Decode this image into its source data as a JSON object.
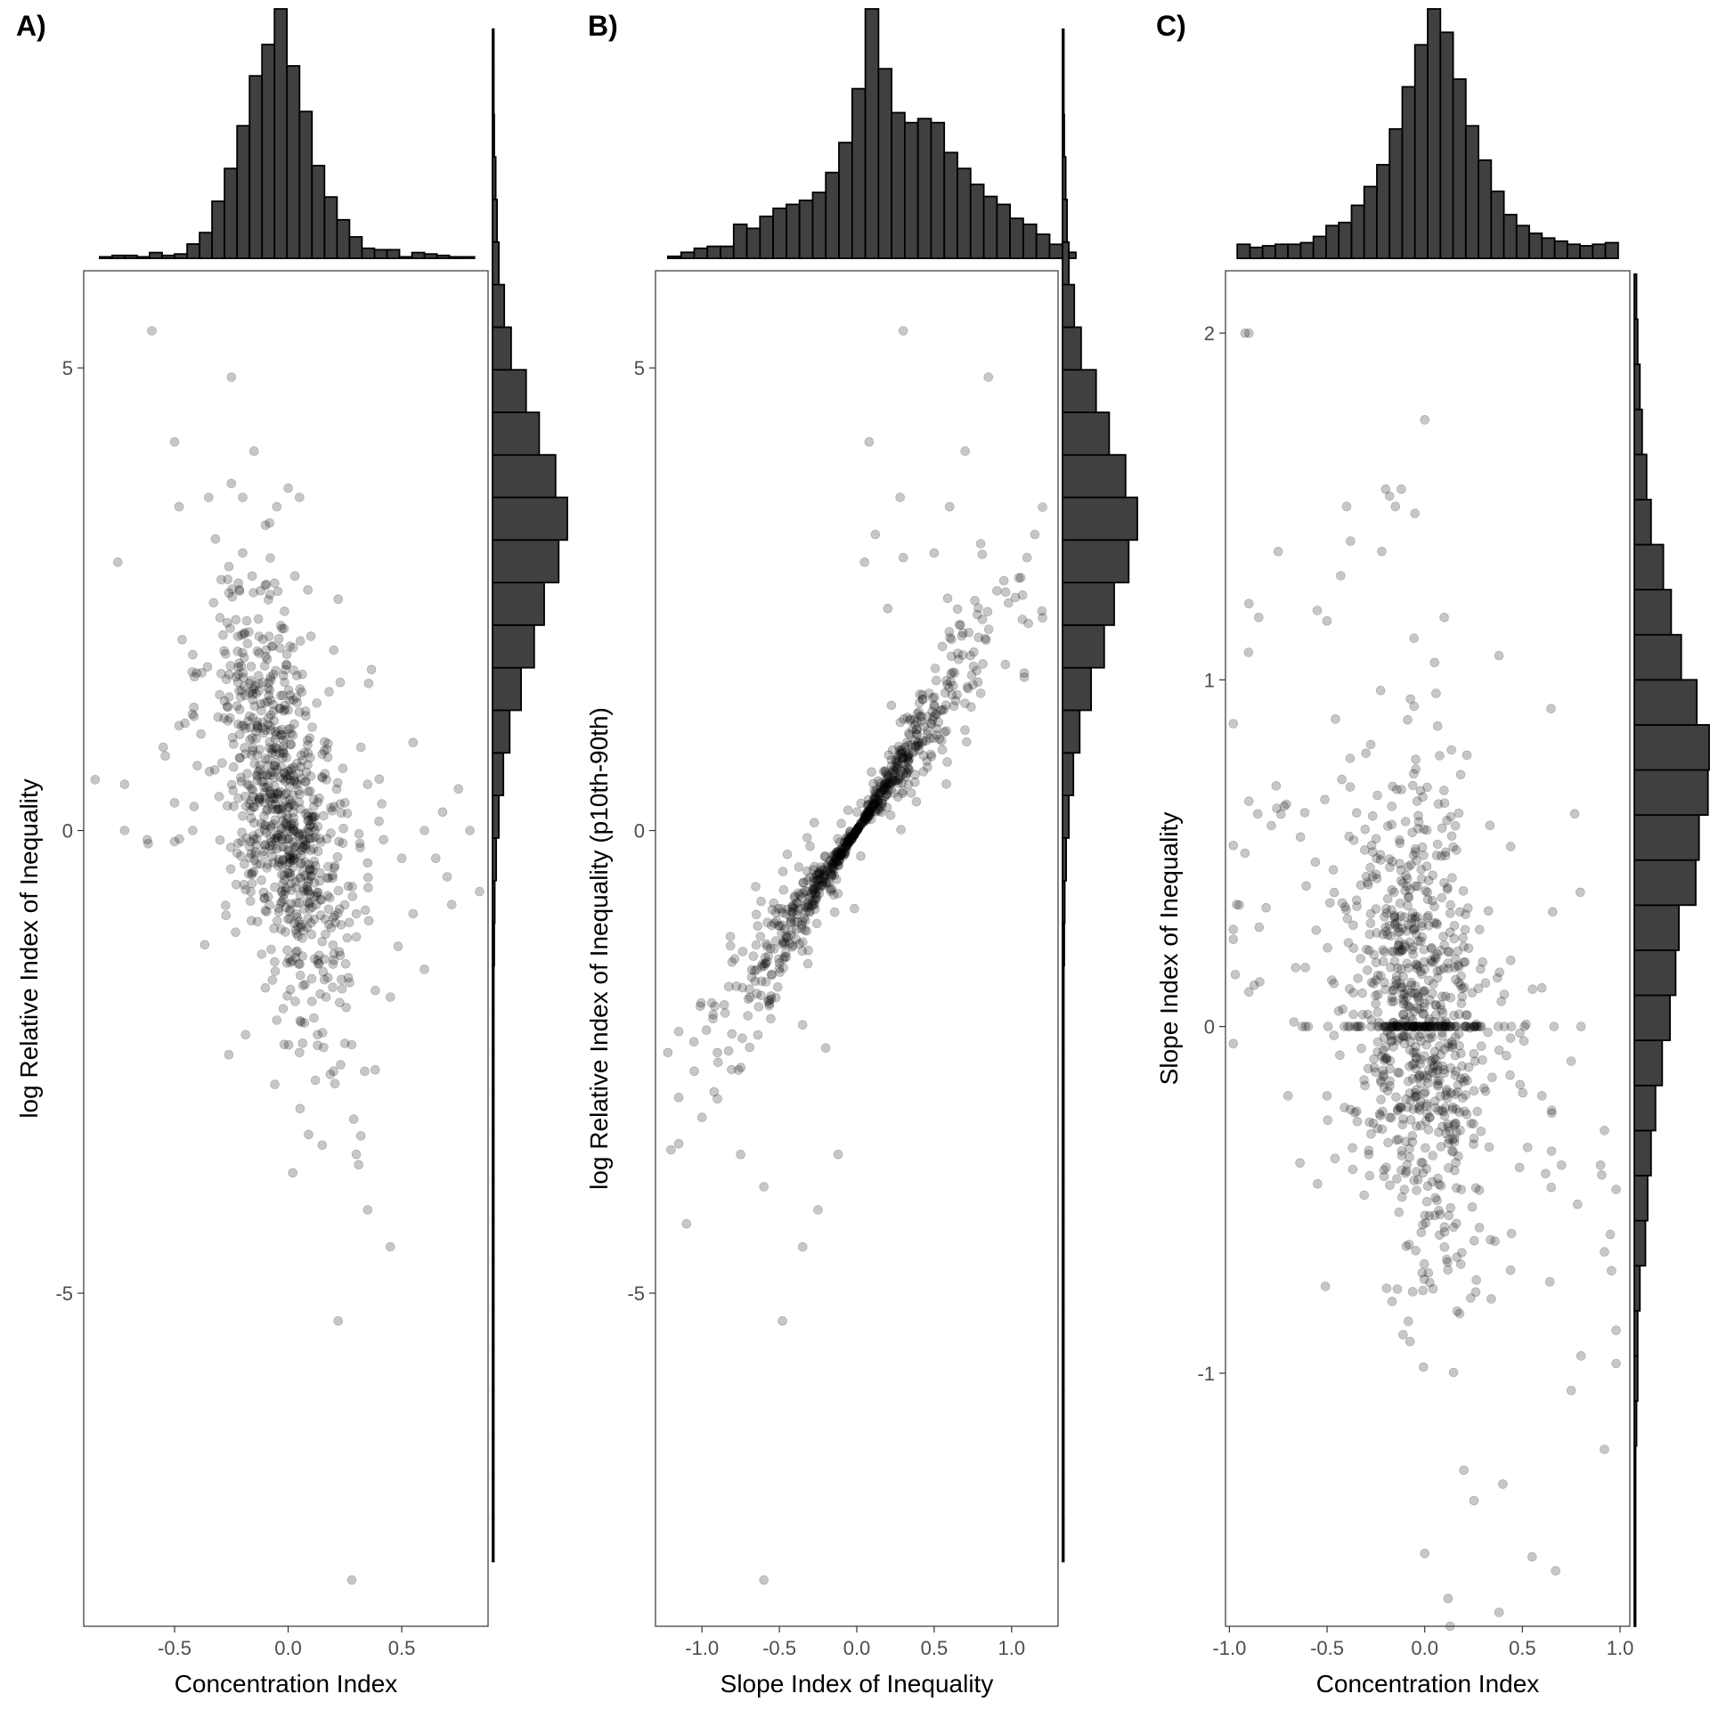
{
  "chart_data": [
    {
      "type": "scatter",
      "panel_label": "A)",
      "xlabel": "Concentration Index",
      "ylabel": "log Relative Index of Inequality",
      "xlim": [
        -0.9,
        0.88
      ],
      "ylim": [
        -8.6,
        6.05
      ],
      "xticks": [
        -0.5,
        0.0,
        0.5
      ],
      "xtick_labels": [
        "-0.5",
        "0.0",
        "0.5"
      ],
      "yticks": [
        5,
        0,
        -5
      ],
      "ytick_labels": [
        "5",
        "0",
        "-5"
      ],
      "marginal_histograms": true,
      "grid": false,
      "point_color": "#000000",
      "point_opacity": 0.22,
      "bar_color": "#404040",
      "x_hist": {
        "start": -0.83,
        "width": 0.055,
        "counts": [
          1,
          2,
          2,
          1,
          4,
          2,
          3,
          10,
          18,
          40,
          63,
          93,
          128,
          150,
          175,
          135,
          103,
          65,
          43,
          27,
          15,
          7,
          6,
          6,
          1,
          4,
          3,
          2,
          1,
          1
        ]
      },
      "y_hist": {
        "start": -7.9,
        "width": 0.46,
        "counts": [
          1,
          1,
          0,
          1,
          0,
          1,
          0,
          1,
          2,
          1,
          3,
          2,
          3,
          3,
          4,
          5,
          8,
          14,
          24,
          38,
          63,
          92,
          114,
          146,
          165,
          139,
          103,
          74,
          41,
          26,
          14,
          10,
          7,
          4,
          2,
          1
        ]
      },
      "points": [
        [
          -0.6,
          5.4
        ],
        [
          -0.25,
          4.9
        ],
        [
          -0.5,
          4.2
        ],
        [
          -0.15,
          4.1
        ],
        [
          -0.75,
          2.9
        ],
        [
          -0.85,
          0.55
        ],
        [
          -0.72,
          0.5
        ],
        [
          -0.72,
          0.0
        ],
        [
          -0.62,
          -0.1
        ],
        [
          -0.55,
          0.9
        ],
        [
          -0.5,
          0.3
        ],
        [
          -0.5,
          -0.12
        ],
        [
          -0.42,
          0.0
        ],
        [
          -0.4,
          0.7
        ],
        [
          -0.42,
          1.9
        ],
        [
          -0.48,
          3.5
        ],
        [
          -0.35,
          3.6
        ],
        [
          -0.32,
          3.15
        ],
        [
          -0.25,
          3.75
        ],
        [
          -0.2,
          3.6
        ],
        [
          0.28,
          -8.1
        ],
        [
          0.22,
          -5.3
        ],
        [
          0.45,
          -4.5
        ],
        [
          0.35,
          -4.1
        ],
        [
          0.3,
          -3.5
        ],
        [
          0.32,
          -3.3
        ],
        [
          0.15,
          -3.4
        ],
        [
          0.02,
          -3.7
        ],
        [
          0.2,
          -2.6
        ],
        [
          0.25,
          -2.3
        ],
        [
          0.22,
          2.5
        ],
        [
          0.42,
          -0.1
        ],
        [
          0.5,
          -0.3
        ],
        [
          0.55,
          -0.9
        ],
        [
          0.55,
          0.95
        ],
        [
          0.6,
          -1.5
        ],
        [
          0.6,
          0.0
        ],
        [
          0.65,
          -0.3
        ],
        [
          0.68,
          0.2
        ],
        [
          0.7,
          -0.5
        ],
        [
          0.72,
          -0.8
        ],
        [
          0.8,
          0.0
        ],
        [
          0.75,
          0.45
        ],
        [
          0.35,
          0.5
        ],
        [
          0.4,
          0.1
        ],
        [
          0.35,
          -0.35
        ],
        [
          0.3,
          -0.9
        ],
        [
          0.3,
          -1.15
        ],
        [
          0.32,
          0.9
        ],
        [
          0.25,
          0.3
        ],
        [
          0.12,
          -2.7
        ],
        [
          0.05,
          -2.4
        ],
        [
          -0.05,
          -2.05
        ],
        [
          -0.1,
          -1.7
        ],
        [
          0.0,
          3.7
        ],
        [
          -0.05,
          3.5
        ],
        [
          -0.1,
          3.3
        ],
        [
          -0.2,
          3.0
        ],
        [
          0.03,
          2.75
        ],
        [
          -0.08,
          2.55
        ],
        [
          0.1,
          2.1
        ],
        [
          0.18,
          1.5
        ],
        [
          -0.3,
          2.3
        ],
        [
          -0.28,
          1.4
        ],
        [
          -0.22,
          1.15
        ],
        [
          0.45,
          -1.8
        ],
        [
          0.15,
          -1.2
        ],
        [
          0.2,
          -1.4
        ],
        [
          0.1,
          -1.0
        ],
        [
          0.05,
          3.6
        ]
      ]
    },
    {
      "type": "scatter",
      "panel_label": "B)",
      "xlabel": "Slope Index of Inequality",
      "ylabel": "log Relative Index of Inequality (p10th-90th)",
      "xlim": [
        -1.3,
        1.3
      ],
      "ylim": [
        -8.6,
        6.05
      ],
      "xticks": [
        -1.0,
        -0.5,
        0.0,
        0.5,
        1.0
      ],
      "xtick_labels": [
        "-1.0",
        "-0.5",
        "0.0",
        "0.5",
        "1.0"
      ],
      "yticks": [
        5,
        0,
        -5
      ],
      "ytick_labels": [
        "5",
        "0",
        "-5"
      ],
      "marginal_histograms": true,
      "grid": false,
      "point_color": "#000000",
      "point_opacity": 0.22,
      "bar_color": "#404040",
      "x_hist": {
        "start": -1.22,
        "width": 0.085,
        "counts": [
          1,
          3,
          5,
          6,
          6,
          17,
          15,
          21,
          25,
          27,
          29,
          33,
          43,
          58,
          85,
          125,
          95,
          73,
          68,
          70,
          68,
          53,
          45,
          37,
          31,
          27,
          20,
          17,
          12,
          7,
          3
        ]
      },
      "y_hist": {
        "start": -7.9,
        "width": 0.46,
        "counts": [
          1,
          1,
          0,
          1,
          0,
          1,
          0,
          1,
          2,
          1,
          3,
          2,
          3,
          3,
          4,
          5,
          8,
          14,
          24,
          38,
          63,
          92,
          114,
          146,
          165,
          139,
          103,
          74,
          41,
          26,
          14,
          10,
          7,
          4,
          2,
          1
        ]
      },
      "points": [
        [
          0.3,
          5.4
        ],
        [
          0.85,
          4.9
        ],
        [
          0.08,
          4.2
        ],
        [
          0.7,
          4.1
        ],
        [
          -0.6,
          -8.1
        ],
        [
          -0.48,
          -5.3
        ],
        [
          -0.35,
          -4.5
        ],
        [
          -0.25,
          -4.1
        ],
        [
          -1.1,
          -4.25
        ],
        [
          -0.75,
          -3.5
        ],
        [
          -0.6,
          -3.85
        ],
        [
          -1.2,
          -3.45
        ],
        [
          -1.0,
          -3.1
        ],
        [
          -0.9,
          -2.9
        ],
        [
          -1.22,
          -2.4
        ],
        [
          -1.05,
          -2.6
        ],
        [
          -0.9,
          -2.4
        ],
        [
          -0.12,
          -3.5
        ],
        [
          -0.2,
          -2.35
        ],
        [
          -0.35,
          -2.1
        ],
        [
          1.15,
          3.2
        ],
        [
          1.1,
          2.95
        ],
        [
          1.2,
          2.3
        ],
        [
          0.95,
          2.7
        ],
        [
          0.8,
          3.1
        ],
        [
          0.6,
          3.5
        ],
        [
          0.5,
          3.0
        ],
        [
          0.3,
          2.95
        ],
        [
          0.28,
          3.6
        ],
        [
          0.12,
          3.2
        ],
        [
          0.05,
          2.9
        ],
        [
          0.2,
          2.4
        ]
      ]
    },
    {
      "type": "scatter",
      "panel_label": "C)",
      "xlabel": "Concentration Index",
      "ylabel": "Slope Index of Inequality",
      "xlim": [
        -1.02,
        1.05
      ],
      "ylim": [
        -1.73,
        2.18
      ],
      "xticks": [
        -1.0,
        -0.5,
        0.0,
        0.5,
        1.0
      ],
      "xtick_labels": [
        "-1.0",
        "-0.5",
        "0.0",
        "0.5",
        "1.0"
      ],
      "yticks": [
        2,
        1,
        0,
        -1
      ],
      "ytick_labels": [
        "2",
        "1",
        "0",
        "-1"
      ],
      "marginal_histograms": true,
      "grid": false,
      "point_color": "#000000",
      "point_opacity": 0.22,
      "bar_color": "#404040",
      "x_hist": {
        "start": -0.96,
        "width": 0.065,
        "counts": [
          9,
          7,
          8,
          9,
          9,
          10,
          14,
          21,
          23,
          34,
          46,
          60,
          83,
          110,
          137,
          160,
          145,
          115,
          85,
          63,
          43,
          28,
          21,
          16,
          13,
          11,
          9,
          8,
          9,
          10
        ]
      },
      "y_hist": {
        "start": -1.73,
        "width": 0.13,
        "counts": [
          1,
          1,
          1,
          1,
          2,
          3,
          3,
          5,
          10,
          12,
          15,
          19,
          25,
          32,
          37,
          40,
          55,
          58,
          66,
          67,
          56,
          42,
          33,
          26,
          15,
          11,
          7,
          5,
          3,
          2
        ]
      },
      "points": [
        [
          -0.92,
          2.0
        ],
        [
          -0.9,
          2.0
        ],
        [
          0.0,
          1.75
        ],
        [
          -0.2,
          1.55
        ],
        [
          -0.18,
          1.53
        ],
        [
          -0.15,
          1.5
        ],
        [
          -0.4,
          1.5
        ],
        [
          -0.75,
          1.37
        ],
        [
          -0.38,
          1.4
        ],
        [
          -0.43,
          1.3
        ],
        [
          -0.12,
          1.55
        ],
        [
          -0.05,
          1.48
        ],
        [
          -0.22,
          1.37
        ],
        [
          -0.9,
          1.22
        ],
        [
          -0.85,
          1.18
        ],
        [
          -0.55,
          1.2
        ],
        [
          -0.5,
          1.17
        ],
        [
          0.38,
          1.07
        ],
        [
          0.1,
          1.18
        ],
        [
          0.05,
          1.05
        ],
        [
          0.13,
          -1.73
        ],
        [
          0.12,
          -1.65
        ],
        [
          0.38,
          -1.69
        ],
        [
          0.0,
          -1.52
        ],
        [
          0.55,
          -1.53
        ],
        [
          0.67,
          -1.57
        ],
        [
          0.2,
          -1.28
        ],
        [
          0.4,
          -1.32
        ],
        [
          0.92,
          -1.22
        ],
        [
          0.75,
          -1.05
        ],
        [
          0.8,
          -0.95
        ],
        [
          0.92,
          -0.65
        ],
        [
          0.95,
          -0.6
        ],
        [
          0.9,
          -0.4
        ],
        [
          0.92,
          -0.3
        ],
        [
          0.7,
          -0.4
        ],
        [
          0.65,
          -0.25
        ],
        [
          0.6,
          -0.2
        ],
        [
          0.75,
          -0.1
        ],
        [
          0.8,
          0.0
        ],
        [
          -0.7,
          -0.2
        ],
        [
          -0.5,
          -0.2
        ],
        [
          -0.37,
          -0.35
        ],
        [
          -0.9,
          0.65
        ],
        [
          -0.92,
          0.5
        ],
        [
          -0.95,
          0.35
        ],
        [
          -0.97,
          0.15
        ],
        [
          -0.9,
          0.1
        ]
      ]
    }
  ]
}
